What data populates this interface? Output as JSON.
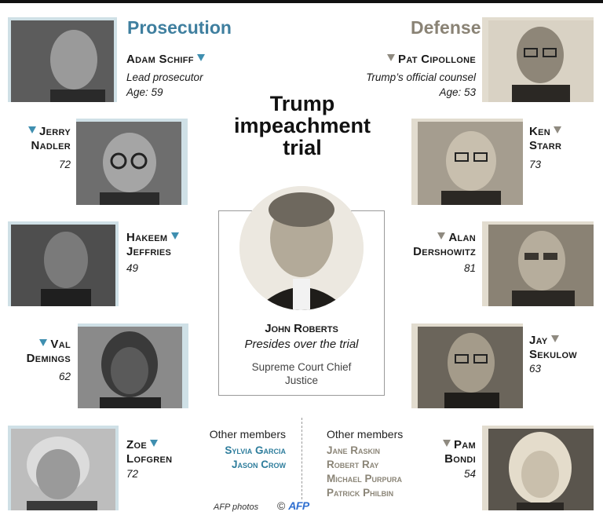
{
  "prosecution": {
    "title": "Prosecution",
    "members": [
      {
        "name": "Adam Schiff",
        "role": "Lead prosecutor",
        "age": "Age: 59"
      },
      {
        "first": "Jerry",
        "last": "Nadler",
        "age": "72"
      },
      {
        "first": "Hakeem",
        "last": "Jeffries",
        "age": "49"
      },
      {
        "first": "Val",
        "last": "Demings",
        "age": "62"
      },
      {
        "first": "Zoe",
        "last": "Lofgren",
        "age": "72"
      }
    ],
    "other_label": "Other members",
    "other": [
      "Sylvia Garcia",
      "Jason Crow"
    ]
  },
  "defense": {
    "title": "Defense",
    "members": [
      {
        "name": "Pat Cipollone",
        "role": "Trump’s official counsel",
        "age": "Age: 53"
      },
      {
        "first": "Ken",
        "last": "Starr",
        "age": "73"
      },
      {
        "first": "Alan",
        "last": "Dershowitz",
        "age": "81"
      },
      {
        "first": "Jay",
        "last": "Sekulow",
        "age": "63"
      },
      {
        "first": "Pam",
        "last": "Bondi",
        "age": "54"
      }
    ],
    "other_label": "Other members",
    "other": [
      "Jane Raskin",
      "Robert Ray",
      "Michael Purpura",
      "Patrick Philbin"
    ]
  },
  "title_lines": [
    "Trump",
    "impeachment",
    "trial"
  ],
  "center": {
    "name": "John Roberts",
    "role": "Presides over the trial",
    "title": "Supreme Court Chief Justice"
  },
  "credit": "AFP photos",
  "logo": {
    "copyright": "©",
    "text": "AFP"
  },
  "colors": {
    "prosecution": "#3f7f9f",
    "defense": "#8a8375"
  }
}
